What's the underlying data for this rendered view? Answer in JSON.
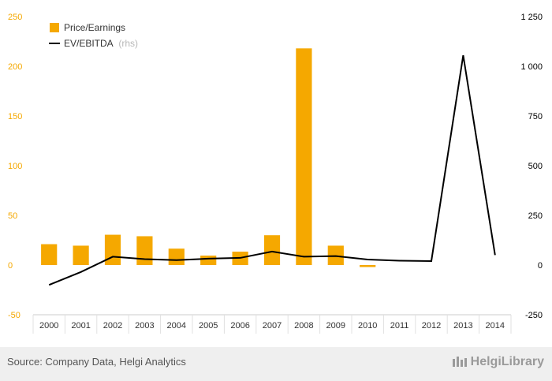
{
  "chart_data": {
    "type": "bar",
    "categories": [
      "2000",
      "2001",
      "2002",
      "2003",
      "2004",
      "2005",
      "2006",
      "2007",
      "2008",
      "2009",
      "2010",
      "2011",
      "2012",
      "2013",
      "2014"
    ],
    "series": [
      {
        "name": "Price/Earnings",
        "kind": "bar",
        "axis": "left",
        "color": "#f5a800",
        "values": [
          21,
          19.5,
          30.5,
          29,
          16.5,
          9.5,
          13.5,
          30,
          218,
          19.5,
          -2,
          null,
          null,
          null,
          null
        ]
      },
      {
        "name": "EV/EBITDA",
        "note": "(rhs)",
        "kind": "line",
        "axis": "right",
        "color": "#000000",
        "values": [
          -100,
          -35,
          42,
          30,
          25,
          32,
          36,
          68,
          42,
          45,
          28,
          22,
          20,
          1055,
          50
        ]
      }
    ],
    "left_axis": {
      "min": -50,
      "max": 250,
      "ticks": [
        -50,
        0,
        50,
        100,
        150,
        200,
        250
      ],
      "tick_labels": [
        "-50",
        "0",
        "50",
        "100",
        "150",
        "200",
        "250"
      ]
    },
    "right_axis": {
      "min": -250,
      "max": 1250,
      "ticks": [
        -250,
        0,
        250,
        500,
        750,
        1000,
        1250
      ],
      "tick_labels": [
        "-250",
        "0",
        "250",
        "500",
        "750",
        "1 000",
        "1 250"
      ]
    },
    "legend_position": "top-left",
    "grid": false
  },
  "footer": {
    "source": "Source: Company Data, Helgi Analytics",
    "brand": "HelgiLibrary"
  }
}
